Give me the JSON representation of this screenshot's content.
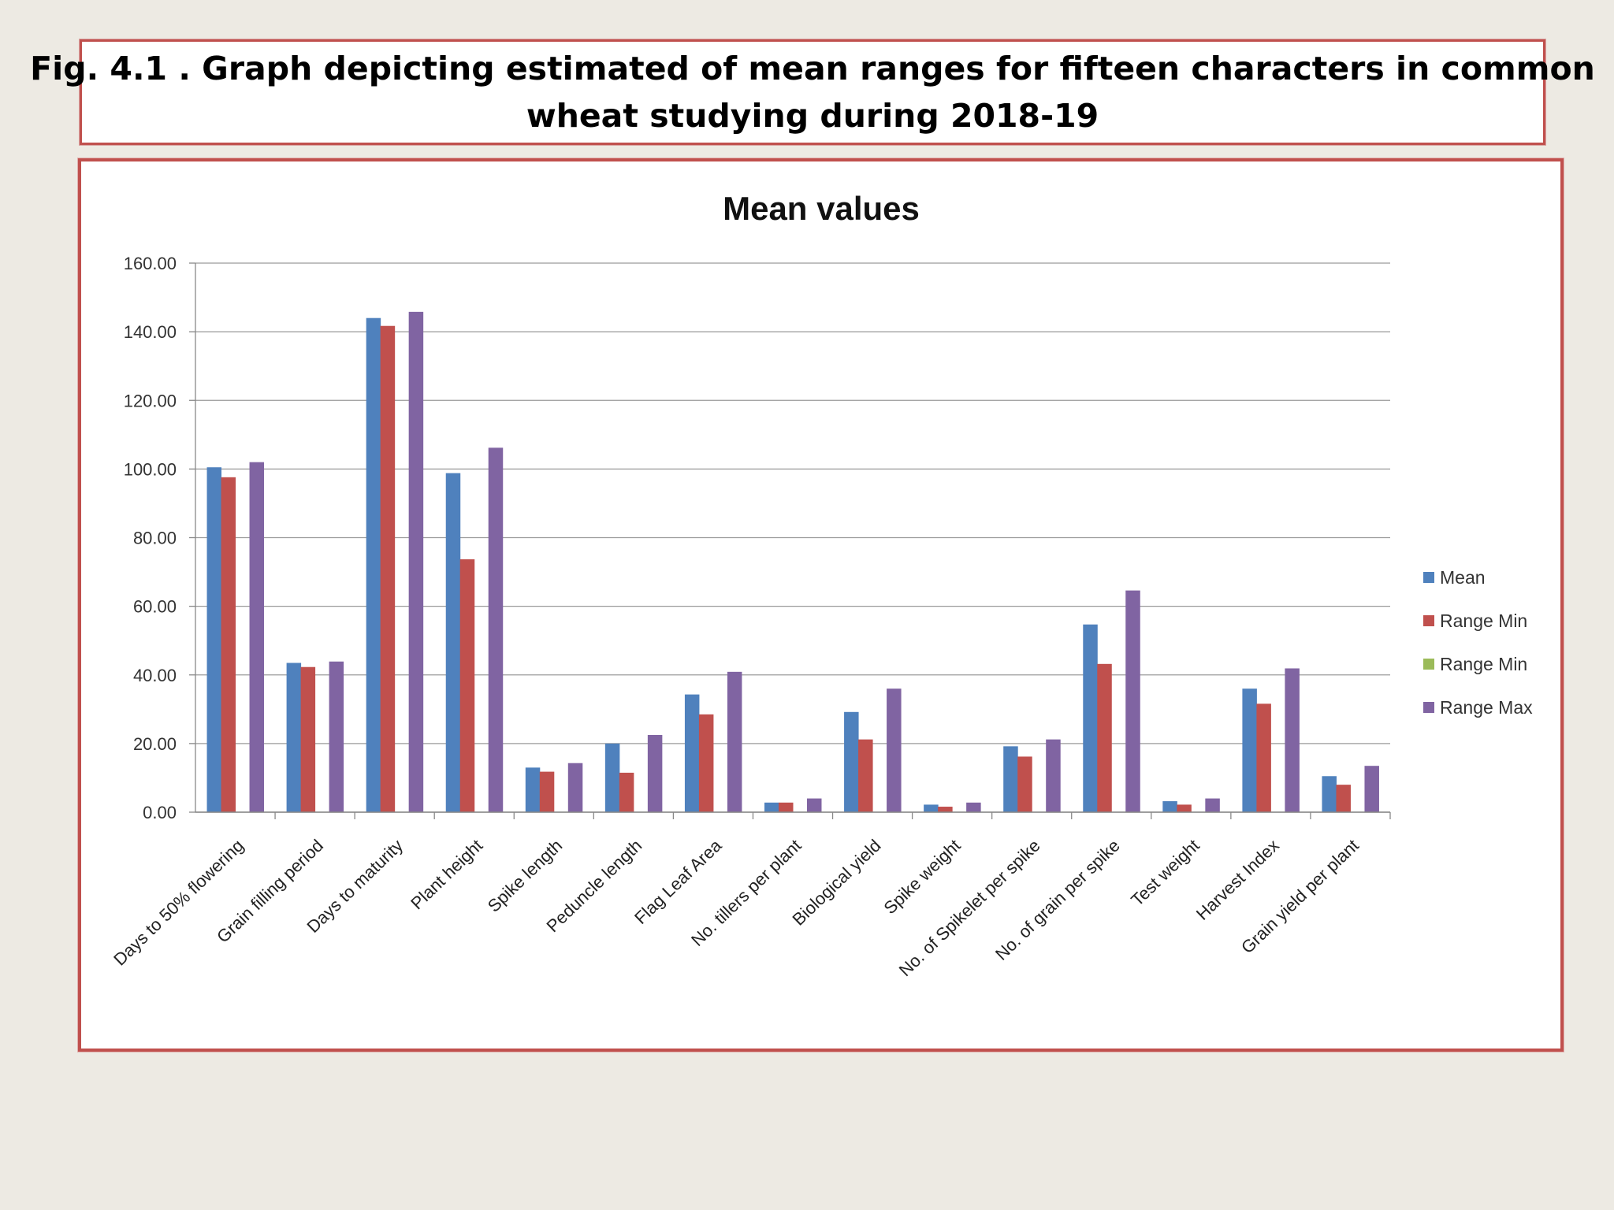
{
  "figure": {
    "caption_line1": "Fig. 4.1 . Graph depicting estimated of mean ranges for fifteen characters in common",
    "caption_line2": "wheat studying during 2018-19"
  },
  "chart_data": {
    "type": "bar",
    "title": "Mean values",
    "xlabel": "",
    "ylabel": "",
    "ylim": [
      0,
      160
    ],
    "yticks": [
      "0.00",
      "20.00",
      "40.00",
      "60.00",
      "80.00",
      "100.00",
      "120.00",
      "140.00",
      "160.00"
    ],
    "grid": true,
    "legend_position": "right",
    "categories": [
      "Days to 50% flowering",
      "Grain filling period",
      "Days to maturity",
      "Plant height",
      "Spike length",
      "Peduncle length",
      "Flag Leaf Area",
      "No. tillers per plant",
      "Biological yield",
      "Spike weight",
      "No. of Spikelet per spike",
      "No. of grain per spike",
      "Test weight",
      "Harvest Index",
      "Grain yield per plant"
    ],
    "series": [
      {
        "name": "Mean",
        "color": "#4f81bd",
        "values": [
          100.5,
          43.5,
          144.0,
          98.8,
          13.0,
          20.0,
          34.3,
          2.8,
          29.2,
          2.2,
          19.2,
          54.7,
          3.2,
          36.0,
          10.5
        ]
      },
      {
        "name": "Range Min",
        "color": "#c0504d",
        "values": [
          97.6,
          42.3,
          141.7,
          73.7,
          11.8,
          11.5,
          28.5,
          2.8,
          21.2,
          1.6,
          16.2,
          43.2,
          2.2,
          31.6,
          8.0
        ]
      },
      {
        "name": "Range Min",
        "color": "#9bbb59",
        "values": [
          0,
          0,
          0,
          0,
          0,
          0,
          0,
          0,
          0,
          0,
          0,
          0,
          0,
          0,
          0
        ]
      },
      {
        "name": "Range Max",
        "color": "#8064a2",
        "values": [
          102.0,
          43.9,
          145.8,
          106.2,
          14.3,
          22.5,
          40.9,
          4.0,
          36.0,
          2.8,
          21.2,
          64.6,
          4.0,
          41.9,
          13.5
        ]
      }
    ]
  }
}
